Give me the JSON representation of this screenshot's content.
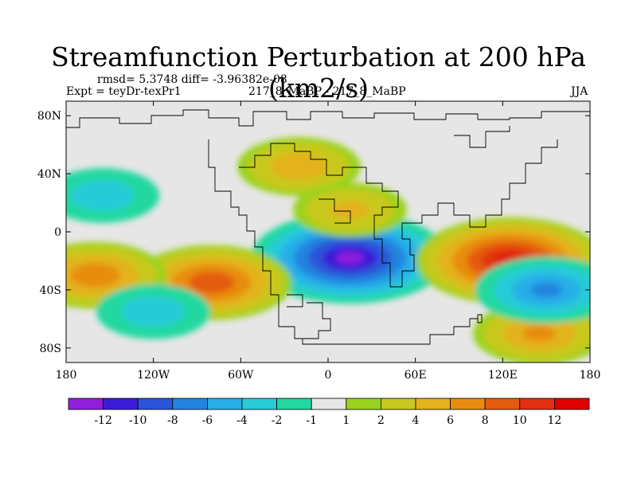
{
  "chart_data": {
    "type": "heatmap",
    "title": "Streamfunction Perturbation at 200 hPa (km2/s)",
    "stats": "rmsd= 5.3748 diff= -3.96382e-08",
    "experiment": "Expt = teyDr-texPr1",
    "case": "217_8_MaBP - 217_8_MaBP",
    "season": "JJA",
    "x_ticks": [
      "180",
      "120W",
      "60W",
      "0",
      "60E",
      "120E",
      "180"
    ],
    "x_values": [
      -180,
      -120,
      -60,
      0,
      60,
      120,
      180
    ],
    "y_ticks": [
      "80N",
      "40N",
      "0",
      "40S",
      "80S"
    ],
    "y_values": [
      80,
      40,
      0,
      -40,
      -80
    ],
    "xlim": [
      -180,
      180
    ],
    "ylim": [
      -90,
      90
    ],
    "colorbar": {
      "labels": [
        "-12",
        "-10",
        "-8",
        "-6",
        "-4",
        "-2",
        "-1",
        "1",
        "2",
        "4",
        "6",
        "8",
        "10",
        "12"
      ],
      "colors": [
        "#8f1fdc",
        "#3a1cd8",
        "#2a55d8",
        "#2384de",
        "#27aee8",
        "#27cbd8",
        "#20d8a0",
        "#e6e6e6",
        "#9ad21e",
        "#c8c81e",
        "#e3b21c",
        "#e88c10",
        "#e45c10",
        "#e33010",
        "#e00000"
      ]
    },
    "features": [
      {
        "name": "strong negative center",
        "lon": 15,
        "lat": -18,
        "value": -13
      },
      {
        "name": "strong positive center",
        "lon": 125,
        "lat": -20,
        "value": 12
      },
      {
        "name": "positive center",
        "lon": -80,
        "lat": -35,
        "value": 9
      },
      {
        "name": "positive center",
        "lon": -160,
        "lat": -30,
        "value": 7
      },
      {
        "name": "positive center",
        "lon": 145,
        "lat": -70,
        "value": 6
      },
      {
        "name": "negative center",
        "lon": 150,
        "lat": -40,
        "value": -7
      },
      {
        "name": "positive center",
        "lon": -20,
        "lat": 45,
        "value": 5
      },
      {
        "name": "positive center",
        "lon": 15,
        "lat": 15,
        "value": 4
      },
      {
        "name": "negative center",
        "lon": -155,
        "lat": 25,
        "value": -4
      },
      {
        "name": "negative center",
        "lon": -120,
        "lat": -55,
        "value": -4
      }
    ]
  }
}
